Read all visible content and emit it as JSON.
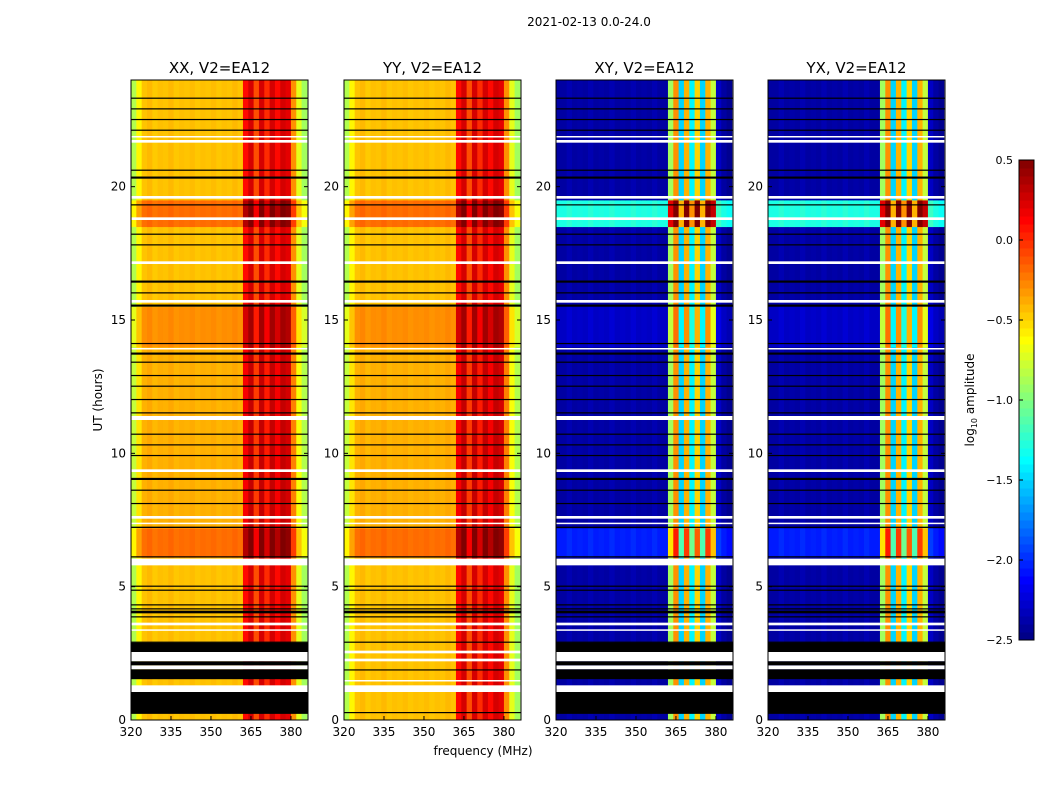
{
  "chart_data": {
    "type": "heatmap",
    "title": "2021-02-13 0.0-24.0",
    "xlabel": "frequency (MHz)",
    "ylabel": "UT (hours)",
    "xlim": [
      320,
      386.4
    ],
    "ylim": [
      0,
      24
    ],
    "xticks": [
      320,
      335,
      350,
      365,
      380
    ],
    "yticks": [
      0,
      5,
      10,
      15,
      20
    ],
    "colorbar": {
      "label_main": "log",
      "label_sub": "10",
      "label_rest": " amplitude",
      "range": [
        -2.5,
        0.5
      ],
      "ticks": [
        0.5,
        0.0,
        -0.5,
        -1.0,
        -1.5,
        -2.0,
        -2.5
      ],
      "tick_labels": [
        "0.5",
        "0.0",
        "−0.5",
        "−1.0",
        "−1.5",
        "−2.0",
        "−2.5"
      ],
      "colormap": "jet"
    },
    "channel_width_mhz": 2,
    "channel_start_mhz": 320,
    "spectra": {
      "parallel": [
        -0.85,
        -0.6,
        -0.45,
        -0.42,
        -0.47,
        -0.44,
        -0.45,
        -0.42,
        -0.46,
        -0.44,
        -0.45,
        -0.43,
        -0.46,
        -0.44,
        -0.45,
        -0.43,
        -0.46,
        -0.44,
        -0.45,
        -0.42,
        -0.45,
        0.1,
        0.25,
        -0.1,
        0.25,
        0.0,
        0.25,
        0.1,
        0.25,
        0.2,
        -0.3,
        -0.7,
        -0.9
      ],
      "cross": [
        -2.4,
        -2.4,
        -2.35,
        -2.4,
        -2.38,
        -2.4,
        -2.35,
        -2.4,
        -2.38,
        -2.4,
        -2.35,
        -2.4,
        -2.38,
        -2.4,
        -2.35,
        -2.4,
        -2.38,
        -2.4,
        -2.35,
        -2.4,
        -2.4,
        -0.9,
        -0.3,
        -1.5,
        -0.4,
        -1.4,
        -0.5,
        -1.5,
        -0.4,
        -0.8,
        -2.3,
        -2.4,
        -2.45
      ]
    },
    "time_blocks": [
      {
        "start": 0.0,
        "end": 6.1,
        "offset_parallel": 0.0,
        "offset_cross": 0.0
      },
      {
        "start": 6.1,
        "end": 7.2,
        "offset_parallel": 0.25,
        "offset_cross": 0.35
      },
      {
        "start": 7.2,
        "end": 14.0,
        "offset_parallel": 0.05,
        "offset_cross": 0.0
      },
      {
        "start": 14.0,
        "end": 15.5,
        "offset_parallel": 0.15,
        "offset_cross": 0.1
      },
      {
        "start": 15.5,
        "end": 18.5,
        "offset_parallel": 0.0,
        "offset_cross": 0.0
      },
      {
        "start": 18.5,
        "end": 19.5,
        "offset_parallel": 0.25,
        "offset_cross": 1.1
      },
      {
        "start": 19.5,
        "end": 24.0,
        "offset_parallel": 0.0,
        "offset_cross": 0.0
      }
    ],
    "flags": {
      "common_white": [
        [
          21.65,
          21.75
        ],
        [
          21.85,
          21.9
        ],
        [
          19.55,
          19.65
        ],
        [
          18.75,
          18.85
        ],
        [
          17.1,
          17.2
        ],
        [
          15.65,
          15.75
        ],
        [
          13.9,
          13.95
        ],
        [
          11.25,
          11.4
        ],
        [
          9.3,
          9.4
        ],
        [
          7.55,
          7.65
        ],
        [
          7.35,
          7.4
        ],
        [
          5.8,
          6.05
        ],
        [
          3.55,
          3.65
        ],
        [
          3.35,
          3.4
        ]
      ],
      "common_black": [
        [
          23.3,
          23.34
        ],
        [
          22.9,
          22.94
        ],
        [
          22.5,
          22.54
        ],
        [
          22.1,
          22.14
        ],
        [
          20.6,
          20.64
        ],
        [
          20.3,
          20.38
        ],
        [
          19.3,
          19.34
        ],
        [
          18.2,
          18.24
        ],
        [
          17.8,
          17.84
        ],
        [
          16.4,
          16.48
        ],
        [
          16.0,
          16.04
        ],
        [
          15.5,
          15.58
        ],
        [
          14.1,
          14.14
        ],
        [
          13.7,
          13.78
        ],
        [
          13.4,
          13.44
        ],
        [
          12.9,
          12.94
        ],
        [
          12.5,
          12.54
        ],
        [
          12.0,
          12.04
        ],
        [
          11.5,
          11.54
        ],
        [
          10.7,
          10.74
        ],
        [
          10.3,
          10.34
        ],
        [
          9.9,
          9.94
        ],
        [
          9.0,
          9.08
        ],
        [
          8.6,
          8.64
        ],
        [
          8.1,
          8.14
        ],
        [
          7.2,
          7.25
        ],
        [
          6.1,
          6.14
        ],
        [
          5.0,
          5.04
        ],
        [
          4.85,
          4.89
        ],
        [
          4.3,
          4.34
        ],
        [
          4.15,
          4.19
        ],
        [
          4.0,
          4.1
        ],
        [
          3.85,
          3.89
        ],
        [
          2.9,
          2.94
        ]
      ],
      "set_a_white": [
        [
          2.55,
          2.2
        ],
        [
          2.05,
          1.9
        ],
        [
          1.3,
          1.05
        ]
      ],
      "set_a_black": [
        [
          2.9,
          2.55
        ],
        [
          2.2,
          2.05
        ],
        [
          1.9,
          1.53
        ],
        [
          1.05,
          0.23
        ]
      ],
      "set_b_white": [
        [
          2.6,
          2.5
        ],
        [
          2.3,
          2.2
        ],
        [
          1.5,
          1.45
        ],
        [
          1.3,
          1.05
        ]
      ],
      "set_b_black": [
        [
          1.9,
          1.86
        ],
        [
          0.3,
          0.27
        ]
      ]
    },
    "panels": [
      {
        "title": "XX, V2=EA12",
        "kind": "parallel",
        "flag_set": "a"
      },
      {
        "title": "YY, V2=EA12",
        "kind": "parallel",
        "flag_set": "b"
      },
      {
        "title": "XY, V2=EA12",
        "kind": "cross",
        "flag_set": "a"
      },
      {
        "title": "YX, V2=EA12",
        "kind": "cross",
        "flag_set": "a"
      }
    ]
  }
}
